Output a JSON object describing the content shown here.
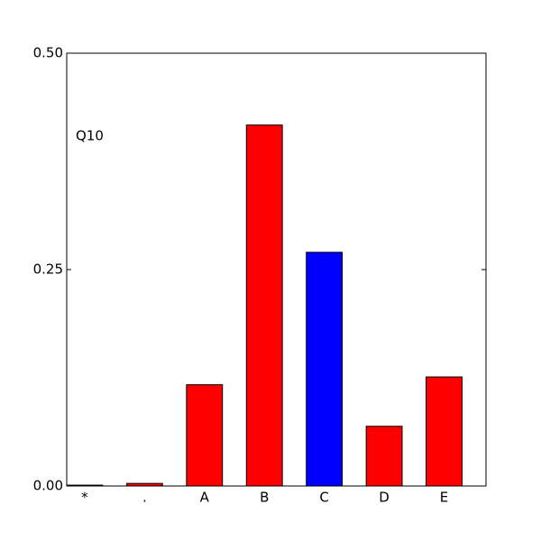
{
  "chart_data": {
    "type": "bar",
    "annotation": "Q10",
    "categories": [
      "*",
      ".",
      "A",
      "B",
      "C",
      "D",
      "E"
    ],
    "values": [
      0.001,
      0.003,
      0.117,
      0.417,
      0.27,
      0.069,
      0.126
    ],
    "colors": [
      "#ff0000",
      "#ff0000",
      "#ff0000",
      "#ff0000",
      "#0000ff",
      "#ff0000",
      "#ff0000"
    ],
    "ylim": [
      0,
      0.5
    ],
    "yticks": [
      {
        "value": 0,
        "label": "0.00"
      },
      0.25,
      {
        "value": 0.5,
        "label": "0.50"
      }
    ],
    "grid": false
  }
}
